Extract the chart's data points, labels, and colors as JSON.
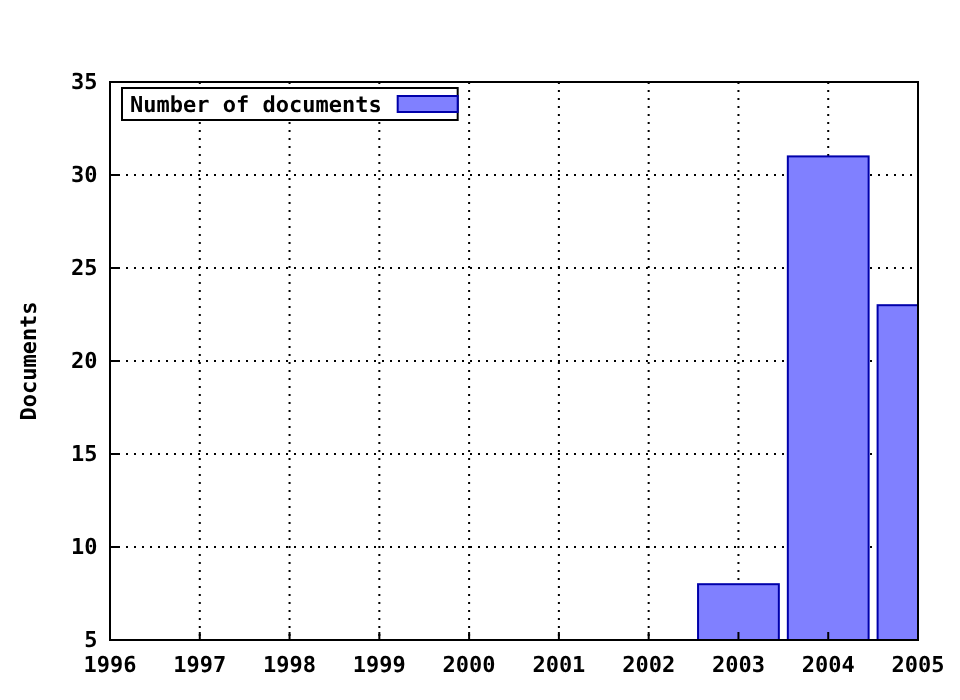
{
  "chart_data": {
    "type": "bar",
    "ylabel": "Documents",
    "x": [
      2003,
      2004,
      2005
    ],
    "series": [
      {
        "name": "Number of documents",
        "color": "#8080ff",
        "values": [
          8,
          31,
          23
        ]
      }
    ],
    "xlim": [
      1996,
      2005
    ],
    "xticks": [
      1996,
      1997,
      1998,
      1999,
      2000,
      2001,
      2002,
      2003,
      2004,
      2005
    ],
    "ylim": [
      5,
      35
    ],
    "yticks": [
      5,
      10,
      15,
      20,
      25,
      30,
      35
    ],
    "grid": true,
    "legend": "top left"
  }
}
